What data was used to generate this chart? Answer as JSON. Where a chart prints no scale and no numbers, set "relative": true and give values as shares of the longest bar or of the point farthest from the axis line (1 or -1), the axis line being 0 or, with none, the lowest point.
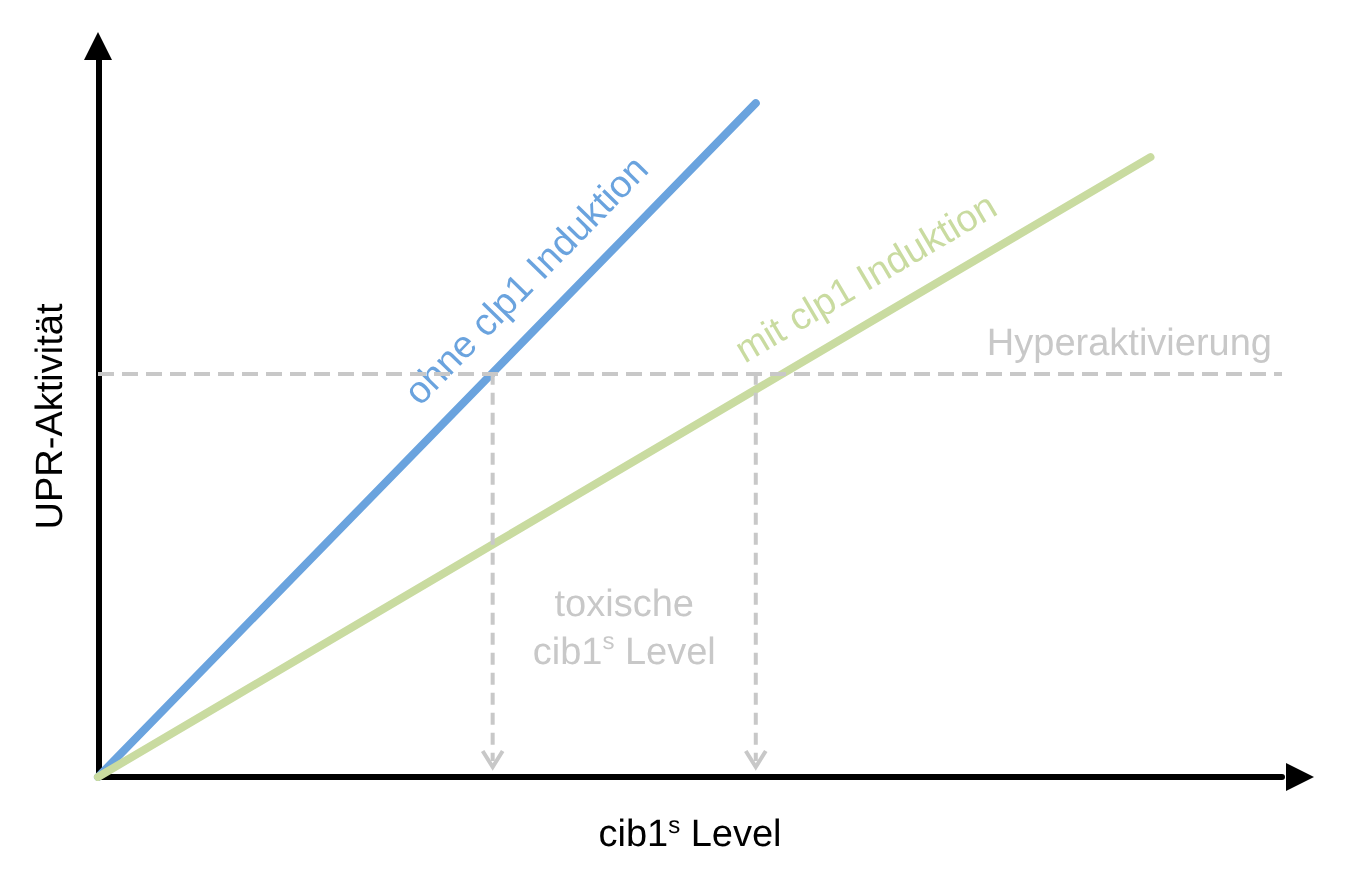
{
  "chart_data": {
    "type": "line",
    "relative": true,
    "xlabel": "cib1$^{s}$ Level",
    "ylabel": "UPR-Aktivität",
    "categories": [
      null,
      null,
      null,
      null,
      null,
      null,
      null,
      null,
      null,
      null
    ],
    "series": [
      {
        "name": "ohne clp1 Induktion",
        "color": "#6aa3de",
        "values": [
          0,
          0.2,
          0.4,
          0.6,
          0.8,
          1,
          null,
          null,
          null,
          null
        ]
      },
      {
        "name": "mit clp1 Induktion",
        "color": "#c9dba0",
        "values": [
          0,
          0.115,
          0.23,
          0.345,
          0.46,
          0.575,
          0.69,
          0.805,
          0.92,
          null
        ]
      }
    ],
    "ref_lines": [
      {
        "axis": "y",
        "value": 0.6,
        "label": "Hyperaktivierung",
        "color": "#c8c8c8",
        "line_style": "dashed"
      }
    ],
    "annotations": [
      "toxische cib1$^{s}$ Level"
    ],
    "grid": false,
    "legend": false,
    "marker": "none",
    "line_style": "solid"
  }
}
